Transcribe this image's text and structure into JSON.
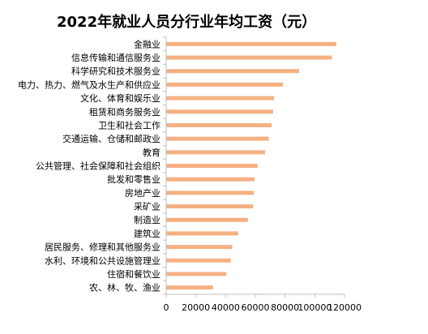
{
  "chart_data": {
    "type": "bar",
    "orientation": "horizontal",
    "title": "2022年就业人员分行业年均工资（元）",
    "categories": [
      "金融业",
      "信息传输和通信服务业",
      "科学研究和技术服务业",
      "电力、热力、燃气及水生产和供应业",
      "文化、体育和娱乐业",
      "租赁和商务服务业",
      "卫生和社会工作",
      "交通运输、仓储和邮政业",
      "教育",
      "公共管理、社会保障和社会组织",
      "批发和零售业",
      "房地产业",
      "采矿业",
      "制造业",
      "建筑业",
      "居民服务、修理和其他服务业",
      "水利、环境和公共设施管理业",
      "住宿和餐饮业",
      "农、林、牧、渔业"
    ],
    "values": [
      114500,
      111500,
      89500,
      78500,
      72500,
      72000,
      71000,
      69000,
      66500,
      61500,
      59500,
      59000,
      58500,
      55000,
      48500,
      44500,
      43500,
      40500,
      31500
    ],
    "xlim": [
      0,
      120000
    ],
    "xticks": [
      0,
      20000,
      40000,
      60000,
      80000,
      100000,
      120000
    ],
    "xtick_labels": [
      "0",
      "20000",
      "40000",
      "60000",
      "80000",
      "100000",
      "120000"
    ],
    "grid": false,
    "colors": {
      "bar": "#F4B183",
      "axis": "#BFBFBF",
      "text": "#000000"
    }
  }
}
